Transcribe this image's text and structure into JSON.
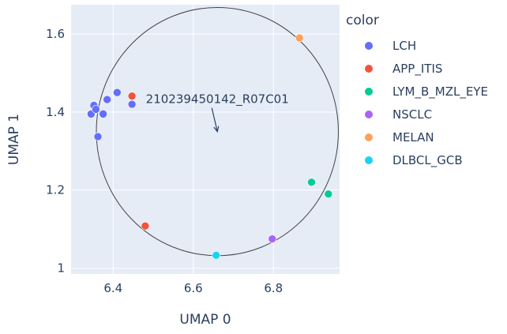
{
  "chart_data": {
    "type": "scatter",
    "xlabel": "UMAP 0",
    "ylabel": "UMAP 1",
    "xlim": [
      6.295,
      6.965
    ],
    "ylim": [
      0.985,
      1.675
    ],
    "x_ticks": [
      6.4,
      6.6,
      6.8
    ],
    "x_tick_labels": [
      "6.4",
      "6.6",
      "6.8"
    ],
    "y_ticks": [
      1.0,
      1.2,
      1.4,
      1.6
    ],
    "y_tick_labels": [
      "1",
      "1.2",
      "1.4",
      "1.6"
    ],
    "grid": true,
    "legend": {
      "title": "color",
      "placement": "right"
    },
    "series": [
      {
        "name": "LCH",
        "color": "#636efa",
        "points": [
          {
            "x": 6.345,
            "y": 1.395
          },
          {
            "x": 6.352,
            "y": 1.417
          },
          {
            "x": 6.357,
            "y": 1.407
          },
          {
            "x": 6.362,
            "y": 1.337
          },
          {
            "x": 6.375,
            "y": 1.395
          },
          {
            "x": 6.385,
            "y": 1.432
          },
          {
            "x": 6.41,
            "y": 1.45
          },
          {
            "x": 6.447,
            "y": 1.42
          }
        ]
      },
      {
        "name": "APP_ITIS",
        "color": "#EF553B",
        "points": [
          {
            "x": 6.447,
            "y": 1.441
          },
          {
            "x": 6.48,
            "y": 1.108
          }
        ]
      },
      {
        "name": "LYM_B_MZL_EYE",
        "color": "#00cc96",
        "points": [
          {
            "x": 6.895,
            "y": 1.22
          },
          {
            "x": 6.937,
            "y": 1.19
          }
        ]
      },
      {
        "name": "NSCLC",
        "color": "#ab63fa",
        "points": [
          {
            "x": 6.797,
            "y": 1.075
          }
        ]
      },
      {
        "name": "MELAN",
        "color": "#FFA15A",
        "points": [
          {
            "x": 6.865,
            "y": 1.59
          }
        ]
      },
      {
        "name": "DLBCL_GCB",
        "color": "#19d3f3",
        "points": [
          {
            "x": 6.657,
            "y": 1.033
          }
        ]
      }
    ],
    "shapes": [
      {
        "type": "circle",
        "x0": 6.358,
        "x1": 6.962,
        "y0": 1.032,
        "y1": 1.668,
        "line_color": "#444444"
      }
    ],
    "annotations": [
      {
        "text": "210239450142_R07C01",
        "x": 6.66,
        "y": 1.35,
        "arrow": true
      }
    ]
  }
}
